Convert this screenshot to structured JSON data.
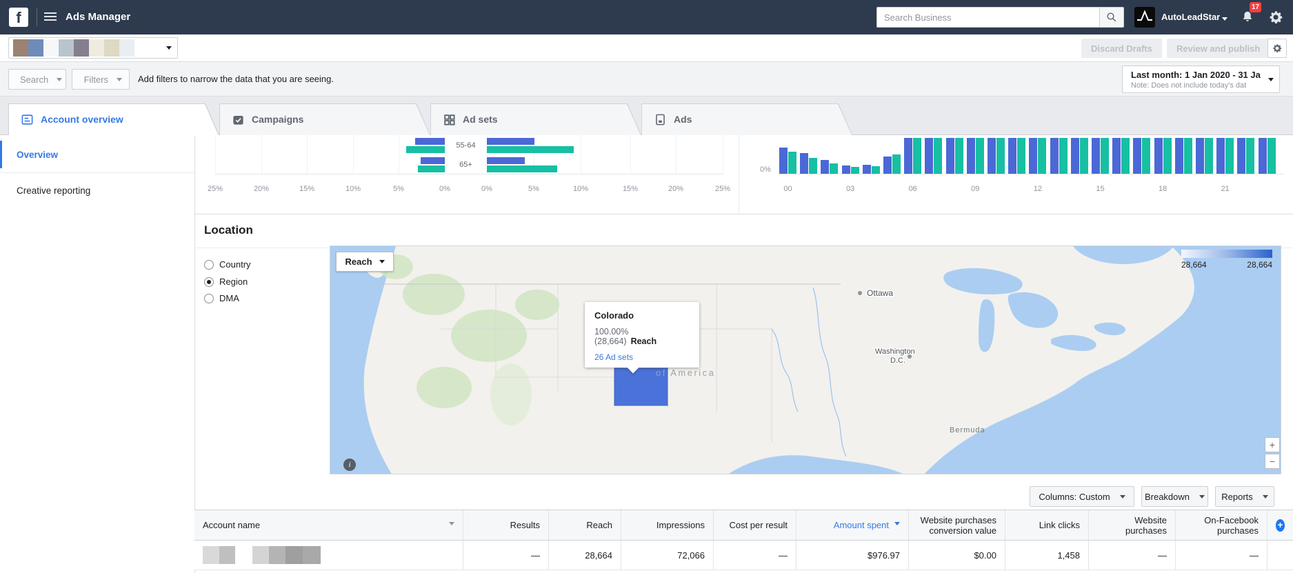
{
  "colors": {
    "accent_blue": "#3578e5",
    "bar_blue": "#4b68d7",
    "bar_teal": "#17bfa3",
    "map_highlight": "#4a72d8",
    "badge_red": "#fa3e3e"
  },
  "top_nav": {
    "app_title": "Ads Manager",
    "search_placeholder": "Search Business",
    "business_name": "AutoLeadStar",
    "notification_count": "17"
  },
  "account_bar": {
    "discard_label": "Discard Drafts",
    "review_label": "Review and publish"
  },
  "filter_bar": {
    "search_label": "Search",
    "filters_label": "Filters",
    "hint": "Add filters to narrow the data that you are seeing.",
    "date_range": "Last month: 1 Jan 2020 - 31 Jan",
    "date_note": "Note: Does not include today's dat"
  },
  "tabs": [
    {
      "label": "Account overview",
      "active": true
    },
    {
      "label": "Campaigns",
      "active": false
    },
    {
      "label": "Ad sets",
      "active": false
    },
    {
      "label": "Ads",
      "active": false
    }
  ],
  "sidebar": {
    "items": [
      {
        "label": "Overview",
        "active": true
      },
      {
        "label": "Creative reporting",
        "active": false
      }
    ]
  },
  "location": {
    "title": "Location",
    "radios": [
      {
        "label": "Country",
        "selected": false
      },
      {
        "label": "Region",
        "selected": true
      },
      {
        "label": "DMA",
        "selected": false
      }
    ],
    "metric_selector": "Reach",
    "legend": {
      "min": "28,664",
      "max": "28,664"
    },
    "tooltip": {
      "region": "Colorado",
      "stat": "100.00% (28,664)",
      "metric": "Reach",
      "link": "26 Ad sets"
    },
    "map_labels": {
      "ottawa": "Ottawa",
      "washington_line1": "Washington",
      "washington_line2": "D.C.",
      "bermuda": "Bermuda",
      "country_partial": "of America"
    },
    "zoom_in": "+",
    "zoom_out": "−",
    "info": "i"
  },
  "table_toolbar": {
    "columns_label": "Columns: Custom",
    "breakdown_label": "Breakdown",
    "reports_label": "Reports"
  },
  "table": {
    "columns": [
      {
        "key": "account_name",
        "label": "Account name",
        "align": "left"
      },
      {
        "key": "results",
        "label": "Results"
      },
      {
        "key": "reach",
        "label": "Reach"
      },
      {
        "key": "impressions",
        "label": "Impressions"
      },
      {
        "key": "cost_per_result",
        "label": "Cost per result"
      },
      {
        "key": "amount_spent",
        "label": "Amount spent",
        "sorted": true
      },
      {
        "key": "wpcv",
        "label": "Website purchases conversion value"
      },
      {
        "key": "link_clicks",
        "label": "Link clicks"
      },
      {
        "key": "website_purchases",
        "label": "Website purchases"
      },
      {
        "key": "on_facebook_purchases",
        "label": "On-Facebook purchases"
      }
    ],
    "rows": [
      {
        "account_name": "",
        "account_name_blurred": true,
        "results": "—",
        "reach": "28,664",
        "impressions": "72,066",
        "cost_per_result": "—",
        "amount_spent": "$976.97",
        "wpcv": "$0.00",
        "link_clicks": "1,458",
        "website_purchases": "—",
        "on_facebook_purchases": "—"
      }
    ]
  },
  "chart_data": [
    {
      "type": "bar",
      "subtype": "tornado_age_gender",
      "note": "top rows scrolled out of view; only bottom two age bands visible",
      "categories": [
        "55-64",
        "65+"
      ],
      "axis_ticks_left": [
        "25%",
        "20%",
        "15%",
        "10%",
        "5%",
        "0%"
      ],
      "axis_ticks_right": [
        "0%",
        "5%",
        "10%",
        "15%",
        "20%",
        "25%"
      ],
      "xlim_pct": [
        0,
        25
      ],
      "series": [
        {
          "name": "left_blue",
          "values_pct": [
            3.2,
            2.6
          ]
        },
        {
          "name": "left_teal",
          "values_pct": [
            4.2,
            2.9
          ]
        },
        {
          "name": "right_blue",
          "values_pct": [
            5.2,
            4.1
          ]
        },
        {
          "name": "right_teal",
          "values_pct": [
            9.5,
            7.7
          ]
        }
      ]
    },
    {
      "type": "bar",
      "subtype": "hourly_grouped",
      "y_tick": "0%",
      "x_tick_labels": [
        "00",
        "03",
        "06",
        "09",
        "12",
        "15",
        "18",
        "21"
      ],
      "hours": [
        "00",
        "01",
        "02",
        "03",
        "04",
        "05",
        "06",
        "07",
        "08",
        "09",
        "10",
        "11",
        "12",
        "13",
        "14",
        "15",
        "16",
        "17",
        "18",
        "19",
        "20",
        "21",
        "22",
        "23"
      ],
      "note": "bars for hours 06-23 are clipped by the top of the visible scrolled area",
      "series": [
        {
          "name": "blue",
          "visible_heights_pct": [
            68,
            54,
            36,
            21,
            23,
            45,
            93,
            93,
            93,
            93,
            93,
            93,
            93,
            93,
            93,
            93,
            93,
            93,
            93,
            93,
            93,
            93,
            93,
            93
          ]
        },
        {
          "name": "teal",
          "visible_heights_pct": [
            57,
            41,
            27,
            18,
            20,
            50,
            93,
            93,
            93,
            93,
            93,
            93,
            93,
            93,
            93,
            93,
            93,
            93,
            93,
            93,
            93,
            93,
            93,
            93
          ]
        }
      ]
    }
  ]
}
